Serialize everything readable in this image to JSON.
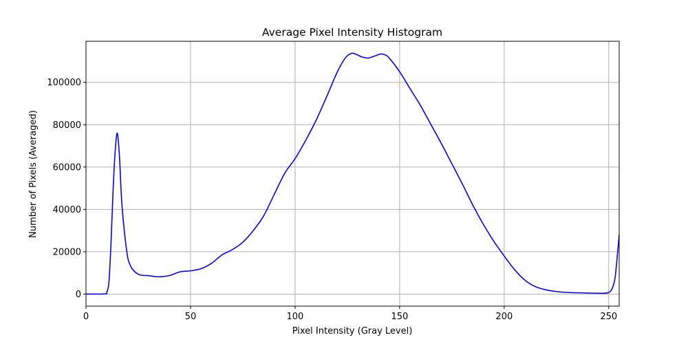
{
  "chart_data": {
    "type": "line",
    "title": "Average Pixel Intensity Histogram",
    "xlabel": "Pixel Intensity (Gray Level)",
    "ylabel": "Number of Pixels (Averaged)",
    "xlim": [
      0,
      255
    ],
    "ylim": [
      -5700,
      119400
    ],
    "xticks": [
      0,
      50,
      100,
      150,
      200,
      250
    ],
    "yticks": [
      0,
      20000,
      40000,
      60000,
      80000,
      100000
    ],
    "grid": true,
    "colors": {
      "line": "#0000ff",
      "grid": "#b0b0b0",
      "axes": "#000000",
      "background": "#ffffff"
    },
    "series": [
      {
        "x": [
          0,
          9,
          10,
          11,
          12,
          13,
          14,
          15,
          16,
          17,
          18,
          19,
          20,
          21,
          22,
          24,
          26,
          28,
          30,
          33,
          36,
          40,
          45,
          50,
          55,
          60,
          65,
          70,
          75,
          80,
          85,
          90,
          95,
          100,
          105,
          110,
          115,
          120,
          124,
          127,
          129,
          132,
          135,
          138,
          141,
          143,
          145,
          150,
          155,
          160,
          165,
          170,
          175,
          180,
          185,
          190,
          195,
          200,
          205,
          210,
          215,
          220,
          225,
          230,
          240,
          248,
          250,
          251,
          252,
          253,
          254,
          255
        ],
        "values": [
          0,
          100,
          1000,
          6000,
          25000,
          50000,
          68000,
          76000,
          65000,
          45000,
          33000,
          24000,
          17000,
          14000,
          12000,
          10000,
          9000,
          8800,
          8700,
          8300,
          8200,
          8800,
          10500,
          11000,
          12000,
          14500,
          18500,
          21000,
          24500,
          30000,
          37000,
          47000,
          57000,
          64000,
          72500,
          82000,
          93000,
          104500,
          111500,
          113700,
          113300,
          112000,
          111500,
          112400,
          113400,
          113000,
          111500,
          105000,
          97000,
          89000,
          80000,
          71000,
          61500,
          52000,
          42000,
          33000,
          25000,
          18000,
          11500,
          6500,
          3500,
          2000,
          1200,
          800,
          500,
          400,
          800,
          1500,
          3500,
          7500,
          17000,
          28000
        ]
      }
    ]
  }
}
